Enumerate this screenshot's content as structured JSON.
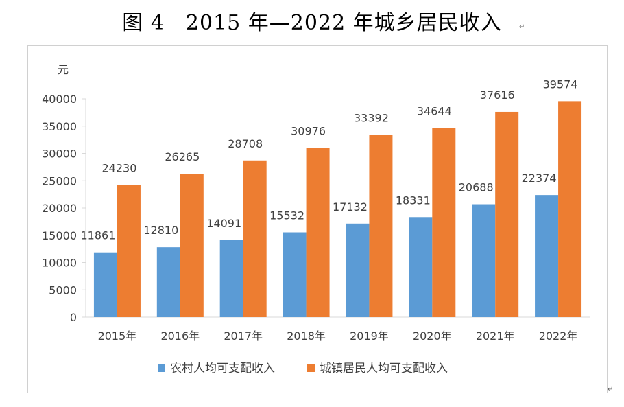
{
  "figure_title": "图 4　2015 年—2022 年城乡居民收入",
  "chart_data": {
    "type": "bar",
    "title": "",
    "ylabel": "元",
    "xlabel": "",
    "categories": [
      "2015年",
      "2016年",
      "2017年",
      "2018年",
      "2019年",
      "2020年",
      "2021年",
      "2022年"
    ],
    "series": [
      {
        "name": "农村人均可支配收入",
        "color": "#5B9BD5",
        "values": [
          11861,
          12810,
          14091,
          15532,
          17132,
          18331,
          20688,
          22374
        ]
      },
      {
        "name": "城镇居民人均可支配收入",
        "color": "#ED7D31",
        "values": [
          24230,
          26265,
          28708,
          30976,
          33392,
          34644,
          37616,
          39574
        ]
      }
    ],
    "ylim": [
      0,
      40000
    ],
    "yticks": [
      "0",
      "5000",
      "10000",
      "15000",
      "20000",
      "25000",
      "30000",
      "35000",
      "40000"
    ],
    "grid": false,
    "legend_position": "bottom"
  }
}
